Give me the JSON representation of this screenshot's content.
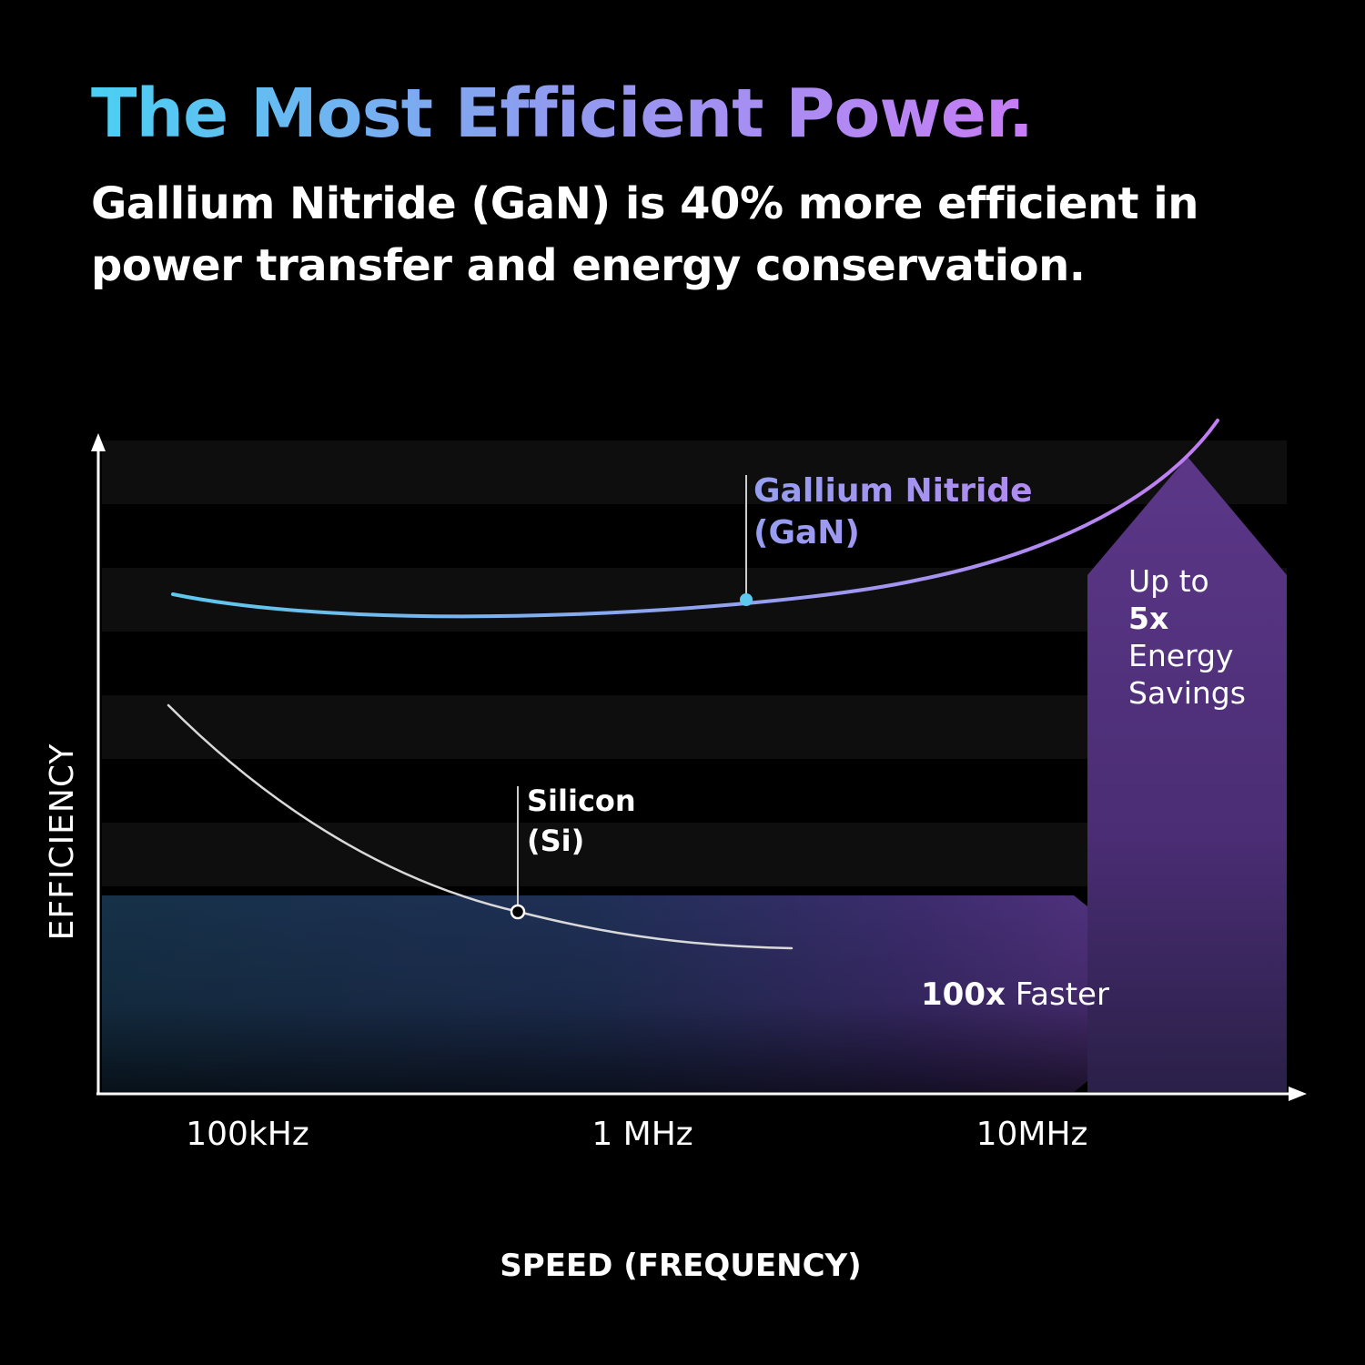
{
  "header": {
    "title": "The Most Efficient Power.",
    "subtitle": "Gallium Nitride (GaN) is 40% more efficient in power transfer and energy conservation."
  },
  "chart_data": {
    "type": "line",
    "xlabel": "SPEED (FREQUENCY)",
    "ylabel": "EFFICIENCY",
    "x_scale": "log",
    "x_ticks": [
      "100kHz",
      "1 MHz",
      "10MHz"
    ],
    "series": [
      {
        "name_lines": [
          "Gallium Nitride",
          "(GaN)"
        ],
        "color": "#5ec8ee",
        "color_end": "#c27df2"
      },
      {
        "name_lines": [
          "Silicon",
          "(Si)"
        ],
        "color": "#d9d9d9"
      }
    ],
    "annotations": {
      "horizontal_arrow": {
        "bold": "100x",
        "text": " Faster"
      },
      "vertical_arrow": {
        "lines": [
          "Up to",
          "5x",
          "Energy",
          "Savings"
        ],
        "bold_line": 1
      }
    },
    "colors": {
      "arrow_purple": "#5a3485",
      "band_blue": "#1d3550"
    }
  }
}
